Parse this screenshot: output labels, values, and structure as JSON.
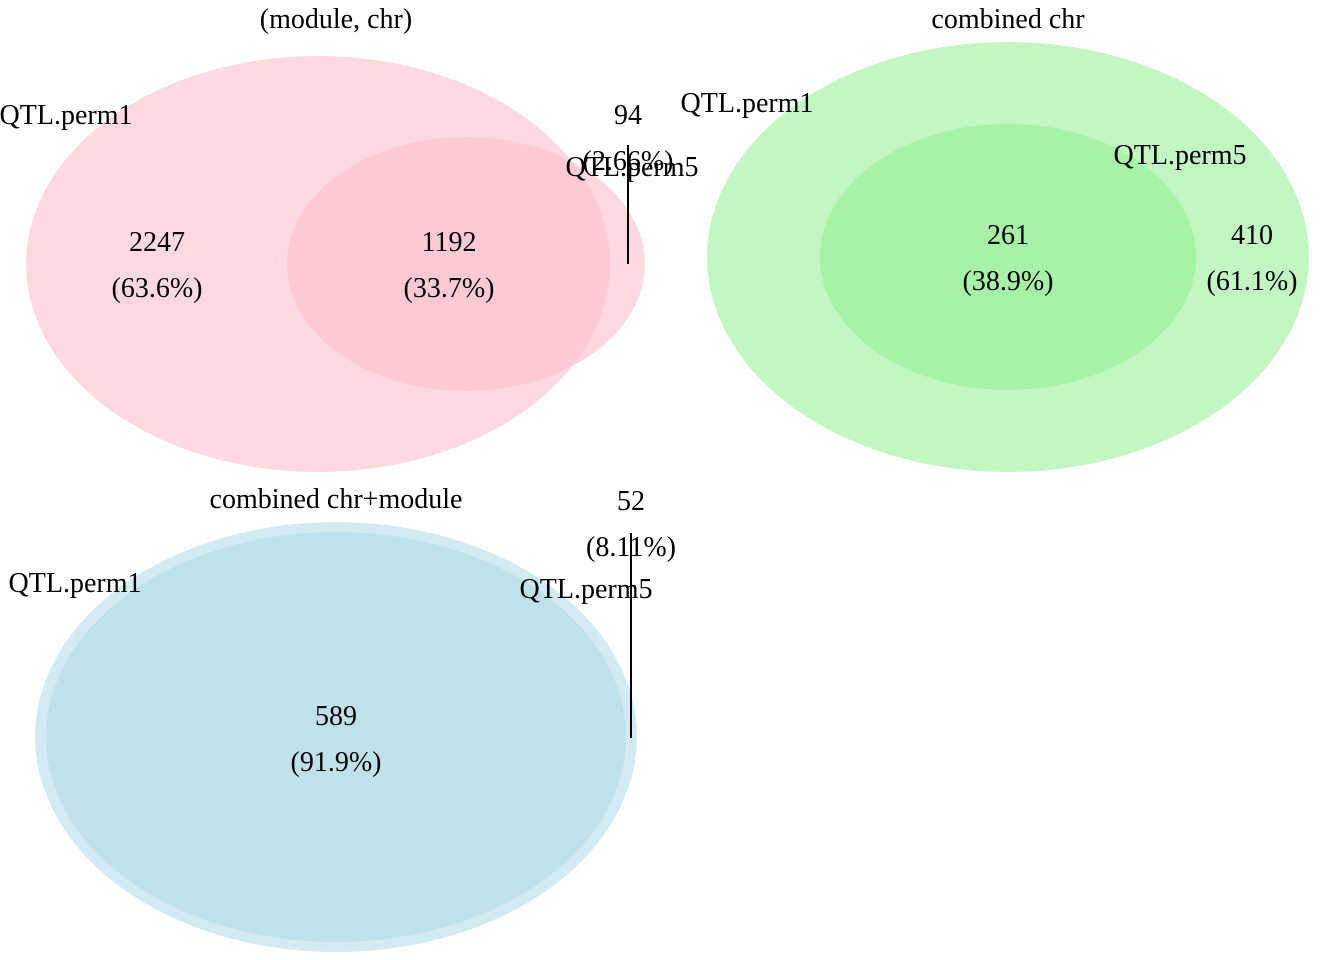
{
  "venn_panels": [
    {
      "title": "(module, chr)",
      "color": "#ffc0cb",
      "set_a_label": "QTL.perm1",
      "set_b_label": "QTL.perm5",
      "only_a": {
        "count": "2247",
        "percent": "(63.6%)"
      },
      "overlap": {
        "count": "1192",
        "percent": "(33.7%)"
      },
      "only_b": {
        "count": "94",
        "percent": "(2.66%)"
      }
    },
    {
      "title": "combined chr",
      "color": "#90ee90",
      "set_a_label": "QTL.perm1",
      "set_b_label": "QTL.perm5",
      "overlap": {
        "count": "261",
        "percent": "(38.9%)"
      },
      "only_a": {
        "count": "410",
        "percent": "(61.1%)"
      }
    },
    {
      "title": "combined chr+module",
      "color": "#add8e6",
      "set_a_label": "QTL.perm1",
      "set_b_label": "QTL.perm5",
      "overlap": {
        "count": "589",
        "percent": "(91.9%)"
      },
      "only_a": {
        "count": "52",
        "percent": "(8.11%)"
      }
    }
  ]
}
